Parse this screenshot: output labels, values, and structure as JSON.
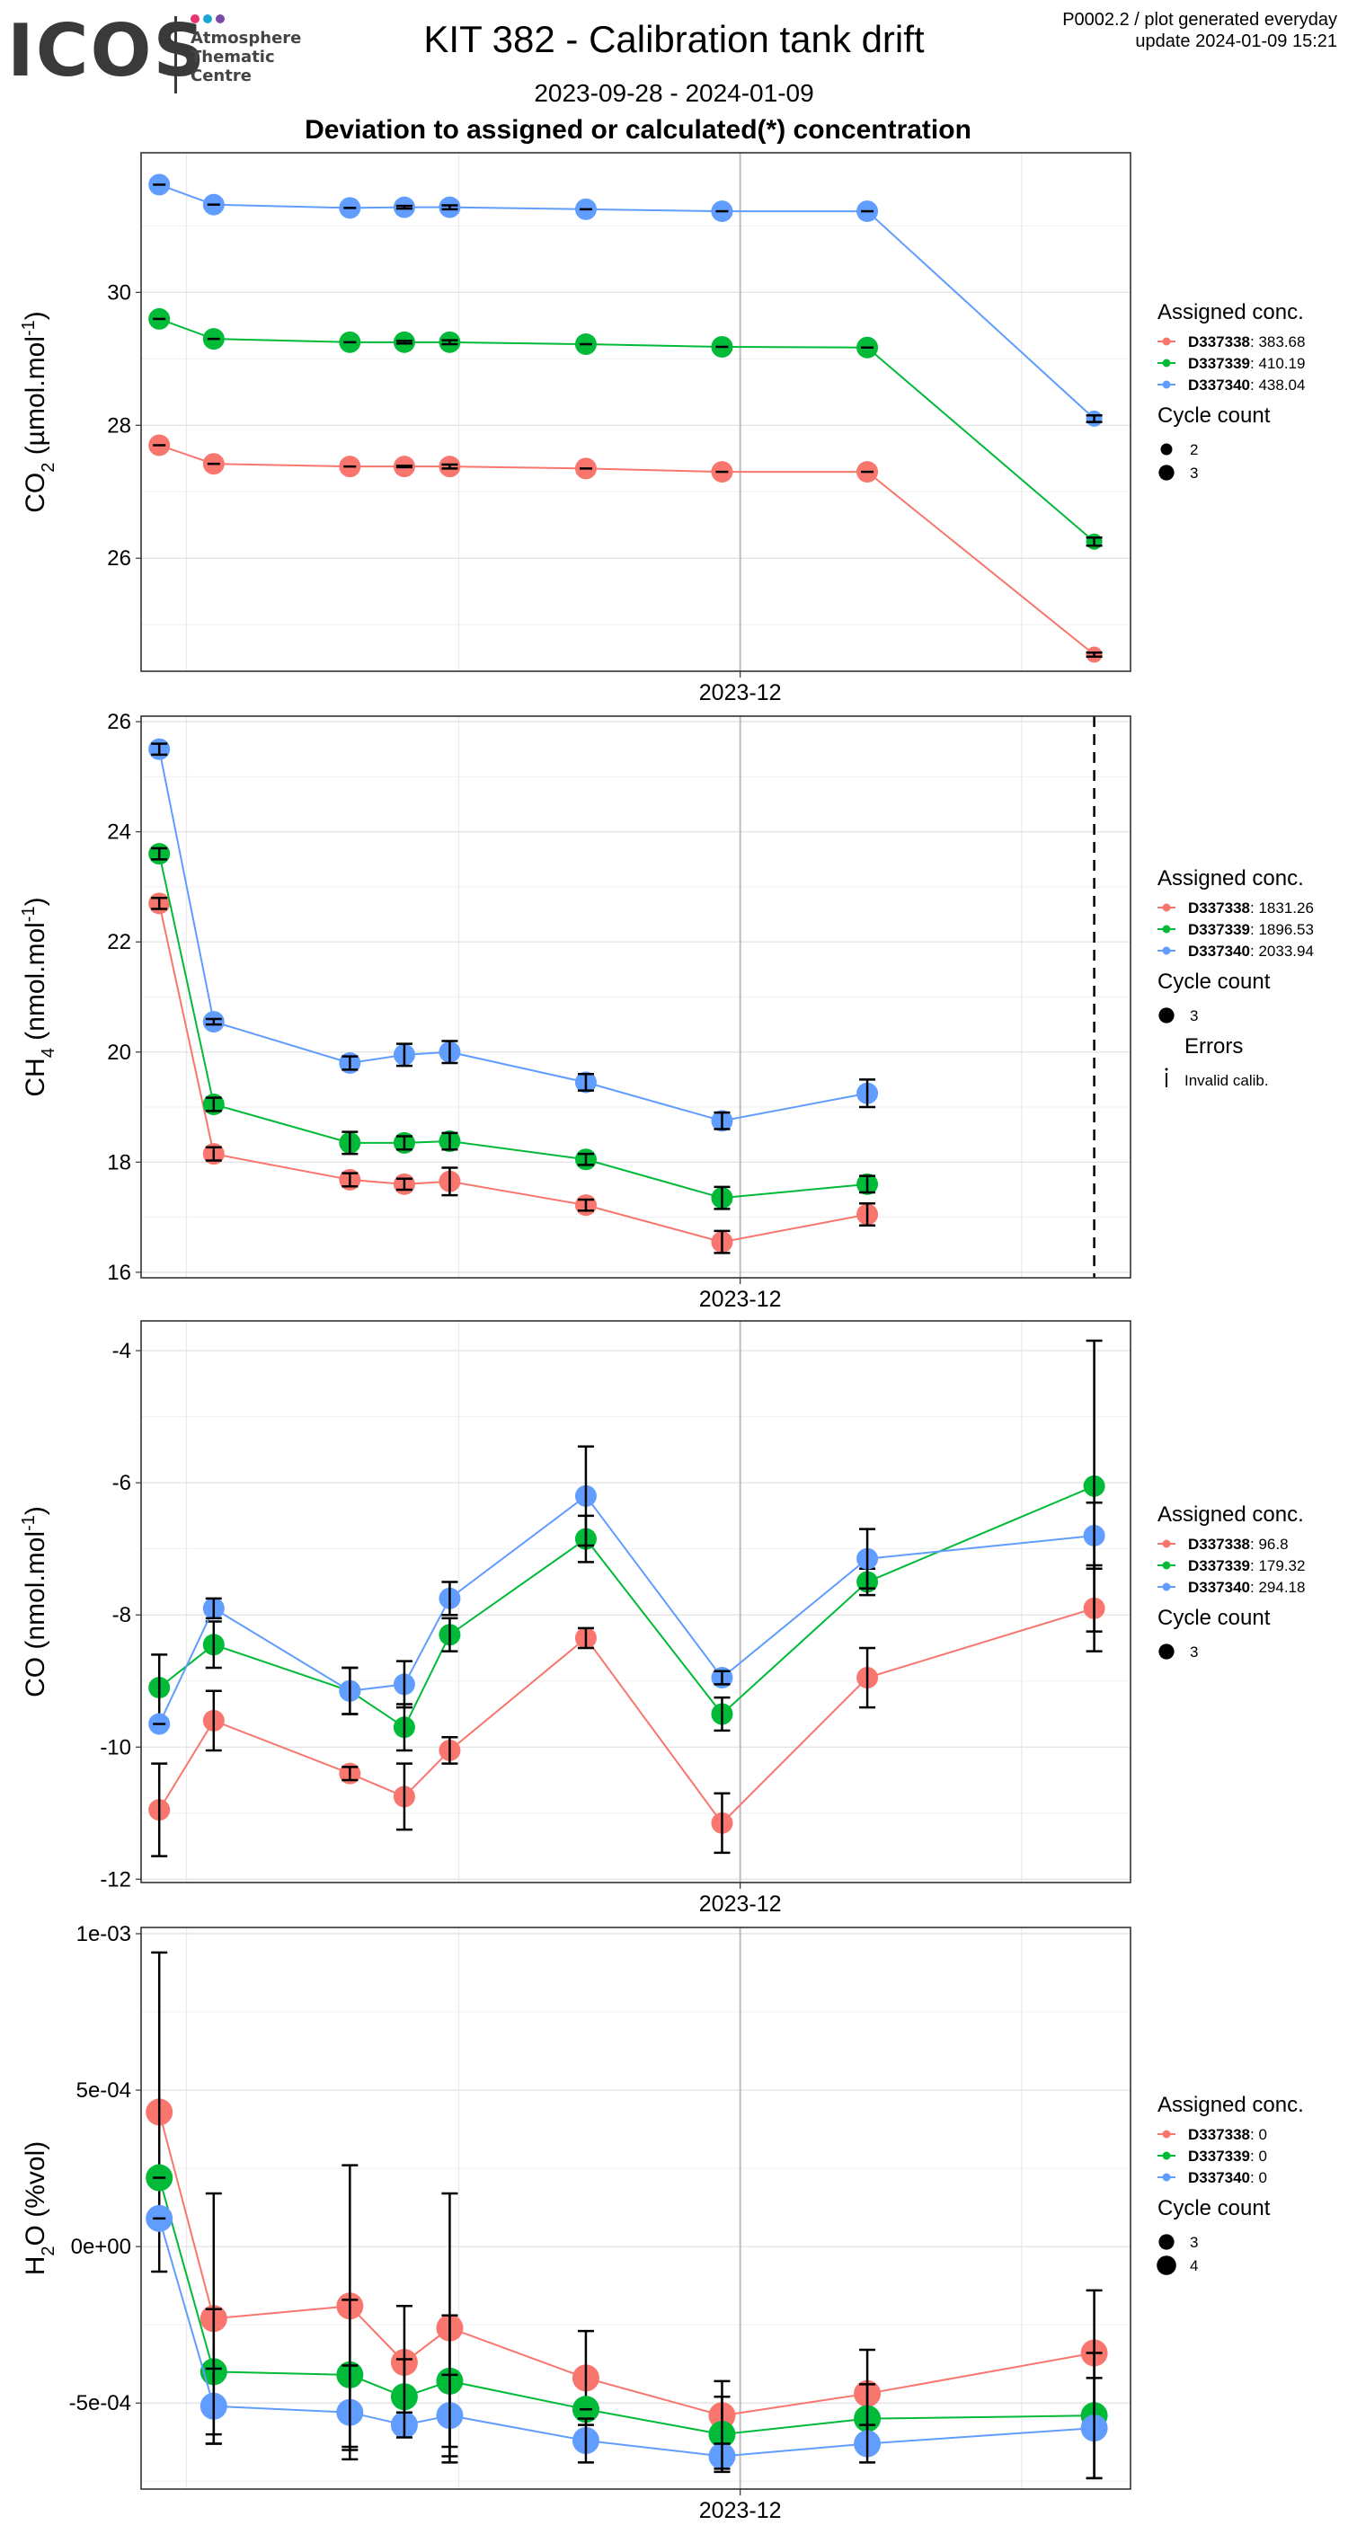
{
  "header": {
    "logo_text": "ICOS",
    "logo_sub": [
      "Atmosphere",
      "Thematic",
      "Centre"
    ],
    "title": "KIT 382 - Calibration tank drift",
    "date_range": "2023-09-28 - 2024-01-09",
    "subtitle": "Deviation to assigned or calculated(*) concentration",
    "meta_line1": "P0002.2 / plot generated everyday",
    "meta_line2": "update  2024-01-09 15:21"
  },
  "colors": {
    "red": "#F8766D",
    "green": "#00BA38",
    "blue": "#619CFF"
  },
  "legend_labels": {
    "assigned": "Assigned conc.",
    "cycle": "Cycle count",
    "errors": "Errors",
    "invalid": "Invalid calib."
  },
  "chart_data": [
    {
      "id": "co2",
      "type": "line",
      "ylabel_parts": [
        [
          "CO",
          "n"
        ],
        [
          "2",
          "sub"
        ],
        [
          " (µmol.mol",
          "n"
        ],
        [
          "-1",
          "sup"
        ],
        [
          ")",
          "n"
        ]
      ],
      "x_tick_label": "2023-12",
      "ylim": [
        24.3,
        32.1
      ],
      "yticks": [
        26,
        28,
        30
      ],
      "ytick_labels": [
        "26",
        "28",
        "30"
      ],
      "x": [
        "2023-09-28",
        "2023-10-04",
        "2023-10-19",
        "2023-10-25",
        "2023-10-30",
        "2023-11-14",
        "2023-11-29",
        "2023-12-15",
        "2024-01-09"
      ],
      "series": [
        {
          "name": "D337338",
          "conc": "383.68",
          "color": "red",
          "values": [
            27.7,
            27.42,
            27.38,
            27.38,
            27.38,
            27.35,
            27.3,
            27.3,
            24.55
          ],
          "errors": [
            0,
            0,
            0,
            0.01,
            0.03,
            0,
            0,
            0,
            0.03
          ],
          "cycles": [
            3,
            3,
            3,
            3,
            3,
            3,
            3,
            3,
            2
          ]
        },
        {
          "name": "D337339",
          "conc": "410.19",
          "color": "green",
          "values": [
            29.6,
            29.3,
            29.25,
            29.25,
            29.25,
            29.22,
            29.18,
            29.17,
            26.25
          ],
          "errors": [
            0,
            0,
            0,
            0.02,
            0.03,
            0,
            0,
            0,
            0.06
          ],
          "cycles": [
            3,
            3,
            3,
            3,
            3,
            3,
            3,
            3,
            2
          ]
        },
        {
          "name": "D337340",
          "conc": "438.04",
          "color": "blue",
          "values": [
            31.62,
            31.32,
            31.27,
            31.28,
            31.28,
            31.25,
            31.22,
            31.22,
            28.1
          ],
          "errors": [
            0,
            0,
            0,
            0.02,
            0.03,
            0,
            0,
            0,
            0.05
          ],
          "cycles": [
            3,
            3,
            3,
            3,
            3,
            3,
            3,
            3,
            2
          ]
        }
      ],
      "legend_cycles": [
        "2",
        "3"
      ],
      "show_errors_legend": false,
      "vline": null
    },
    {
      "id": "ch4",
      "type": "line",
      "ylabel_parts": [
        [
          "CH",
          "n"
        ],
        [
          "4",
          "sub"
        ],
        [
          " (nmol.mol",
          "n"
        ],
        [
          "-1",
          "sup"
        ],
        [
          ")",
          "n"
        ]
      ],
      "x_tick_label": "2023-12",
      "ylim": [
        15.9,
        26.1
      ],
      "yticks": [
        16,
        18,
        20,
        22,
        24,
        26
      ],
      "ytick_labels": [
        "16",
        "18",
        "20",
        "22",
        "24",
        "26"
      ],
      "x": [
        "2023-09-28",
        "2023-10-04",
        "2023-10-19",
        "2023-10-25",
        "2023-10-30",
        "2023-11-14",
        "2023-11-29",
        "2023-12-15"
      ],
      "series": [
        {
          "name": "D337338",
          "conc": "1831.26",
          "color": "red",
          "values": [
            22.7,
            18.15,
            17.68,
            17.6,
            17.65,
            17.22,
            16.55,
            17.05
          ],
          "errors": [
            0.1,
            0.12,
            0.12,
            0.1,
            0.25,
            0.1,
            0.2,
            0.2
          ],
          "cycles": [
            3,
            3,
            3,
            3,
            3,
            3,
            3,
            3
          ]
        },
        {
          "name": "D337339",
          "conc": "1896.53",
          "color": "green",
          "values": [
            23.6,
            19.05,
            18.35,
            18.35,
            18.38,
            18.05,
            17.35,
            17.6
          ],
          "errors": [
            0.1,
            0.12,
            0.2,
            0.12,
            0.15,
            0.1,
            0.2,
            0.15
          ],
          "cycles": [
            3,
            3,
            3,
            3,
            3,
            3,
            3,
            3
          ]
        },
        {
          "name": "D337340",
          "conc": "2033.94",
          "color": "blue",
          "values": [
            25.5,
            20.55,
            19.8,
            19.95,
            20.0,
            19.45,
            18.75,
            19.25
          ],
          "errors": [
            0.1,
            0.05,
            0.12,
            0.2,
            0.2,
            0.15,
            0.15,
            0.25
          ],
          "cycles": [
            3,
            3,
            3,
            3,
            3,
            3,
            3,
            3
          ]
        }
      ],
      "legend_cycles": [
        "3"
      ],
      "show_errors_legend": true,
      "vline": "2024-01-09"
    },
    {
      "id": "co",
      "type": "line",
      "ylabel_parts": [
        [
          "CO (nmol.mol",
          "n"
        ],
        [
          "-1",
          "sup"
        ],
        [
          ")",
          "n"
        ]
      ],
      "x_tick_label": "2023-12",
      "ylim": [
        -12.05,
        -3.55
      ],
      "yticks": [
        -12,
        -10,
        -8,
        -6,
        -4
      ],
      "ytick_labels": [
        "-12",
        "-10",
        "-8",
        "-6",
        "-4"
      ],
      "x": [
        "2023-09-28",
        "2023-10-04",
        "2023-10-19",
        "2023-10-25",
        "2023-10-30",
        "2023-11-14",
        "2023-11-29",
        "2023-12-15",
        "2024-01-09"
      ],
      "series": [
        {
          "name": "D337338",
          "conc": "96.8",
          "color": "red",
          "values": [
            -10.95,
            -9.6,
            -10.4,
            -10.75,
            -10.05,
            -8.35,
            -11.15,
            -8.95,
            -7.9
          ],
          "errors": [
            0.7,
            0.45,
            0.1,
            0.5,
            0.2,
            0.15,
            0.45,
            0.45,
            0.65
          ],
          "cycles": [
            3,
            3,
            3,
            3,
            3,
            3,
            3,
            3,
            3
          ]
        },
        {
          "name": "D337339",
          "conc": "179.32",
          "color": "green",
          "values": [
            -9.1,
            -8.45,
            -9.15,
            -9.7,
            -8.3,
            -6.85,
            -9.5,
            -7.5,
            -6.05
          ],
          "errors": [
            0.5,
            0.35,
            0.35,
            0.35,
            0.25,
            0.35,
            0.25,
            0.2,
            2.2
          ],
          "cycles": [
            3,
            3,
            3,
            3,
            3,
            3,
            3,
            3,
            3
          ]
        },
        {
          "name": "D337340",
          "conc": "294.18",
          "color": "blue",
          "values": [
            -9.65,
            -7.9,
            -9.15,
            -9.05,
            -7.75,
            -6.2,
            -8.95,
            -7.15,
            -6.8
          ],
          "errors": [
            0,
            0.15,
            0.35,
            0.35,
            0.25,
            0.75,
            0.1,
            0.45,
            0.5
          ],
          "cycles": [
            3,
            3,
            3,
            3,
            3,
            3,
            3,
            3,
            3
          ]
        }
      ],
      "legend_cycles": [
        "3"
      ],
      "show_errors_legend": false,
      "vline": null
    },
    {
      "id": "h2o",
      "type": "line",
      "ylabel_parts": [
        [
          "H",
          "n"
        ],
        [
          "2",
          "sub"
        ],
        [
          "O (%vol)",
          "n"
        ]
      ],
      "x_tick_label": "2023-12",
      "ylim": [
        -0.000775,
        0.00102
      ],
      "yticks": [
        -0.0005,
        0,
        0.0005,
        0.001
      ],
      "ytick_labels": [
        "-5e-04",
        "0e+00",
        "5e-04",
        "1e-03"
      ],
      "x": [
        "2023-09-28",
        "2023-10-04",
        "2023-10-19",
        "2023-10-25",
        "2023-10-30",
        "2023-11-14",
        "2023-11-29",
        "2023-12-15",
        "2024-01-09"
      ],
      "series": [
        {
          "name": "D337338",
          "conc": "0",
          "color": "red",
          "values": [
            0.00043,
            -0.00023,
            -0.00019,
            -0.00037,
            -0.00026,
            -0.00042,
            -0.00054,
            -0.00047,
            -0.00034
          ],
          "errors": [
            0.00051,
            0.0004,
            0.00045,
            0.00018,
            0.00043,
            0.00015,
            0.00011,
            0.00014,
            0.0002
          ],
          "cycles": [
            4,
            4,
            4,
            4,
            4,
            4,
            4,
            4,
            4
          ]
        },
        {
          "name": "D337339",
          "conc": "0",
          "color": "green",
          "values": [
            0.00022,
            -0.0004,
            -0.00041,
            -0.00048,
            -0.00043,
            -0.00052,
            -0.0006,
            -0.00055,
            -0.00054
          ],
          "errors": [
            0,
            0.0002,
            0.00024,
            0.00012,
            0.00021,
            0,
            0.00012,
            0.00011,
            0.0002
          ],
          "cycles": [
            4,
            4,
            4,
            4,
            4,
            4,
            4,
            4,
            4
          ]
        },
        {
          "name": "D337340",
          "conc": "0",
          "color": "blue",
          "values": [
            9e-05,
            -0.00051,
            -0.00053,
            -0.00057,
            -0.00054,
            -0.00062,
            -0.00067,
            -0.00063,
            -0.00058
          ],
          "errors": [
            0,
            0.00012,
            0.00015,
            4e-05,
            0.00013,
            7e-05,
            4e-05,
            6e-05,
            0.00016
          ],
          "cycles": [
            4,
            4,
            4,
            4,
            4,
            4,
            4,
            4,
            4
          ]
        }
      ],
      "legend_cycles": [
        "3",
        "4"
      ],
      "show_errors_legend": false,
      "vline": null
    }
  ]
}
